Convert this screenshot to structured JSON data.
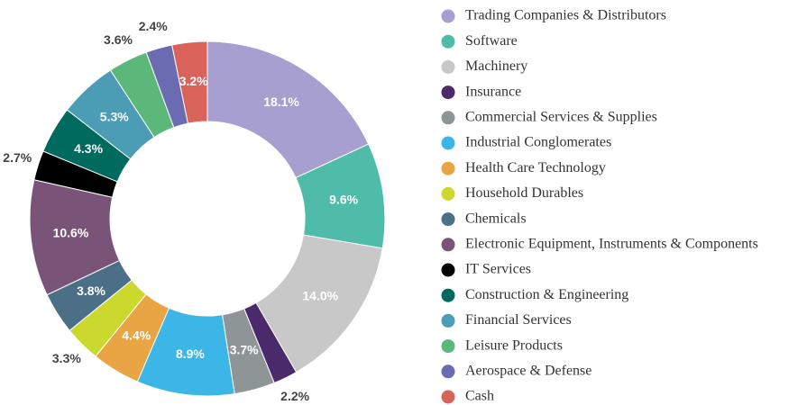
{
  "chart_data": {
    "type": "donut",
    "categories": [
      "Trading Companies & Distributors",
      "Software",
      "Machinery",
      "Insurance",
      "Commercial Services & Supplies",
      "Industrial Conglomerates",
      "Health Care Technology",
      "Household Durables",
      "Chemicals",
      "Electronic Equipment, Instruments & Components",
      "IT Services",
      "Construction & Engineering",
      "Financial Services",
      "Leisure Products",
      "Aerospace & Defense",
      "Cash"
    ],
    "values": [
      18.1,
      9.6,
      14.0,
      2.2,
      3.7,
      8.9,
      4.4,
      3.3,
      3.8,
      10.6,
      2.7,
      4.3,
      5.3,
      3.6,
      2.4,
      3.2
    ],
    "value_labels": [
      "18.1%",
      "9.6%",
      "14.0%",
      "2.2%",
      "3.7%",
      "8.9%",
      "4.4%",
      "3.3%",
      "3.8%",
      "10.6%",
      "2.7%",
      "4.3%",
      "5.3%",
      "3.6%",
      "2.4%",
      "3.2%"
    ],
    "label_position": [
      "inside",
      "inside",
      "inside",
      "outside",
      "inside",
      "inside",
      "inside",
      "outside",
      "inside",
      "inside",
      "outside",
      "inside",
      "inside",
      "outside",
      "outside",
      "inside"
    ],
    "colors": [
      "#a79fd0",
      "#4fbcaa",
      "#c8c8c8",
      "#4a2a6a",
      "#8e9597",
      "#3cb6e6",
      "#e9a444",
      "#cbd92e",
      "#4a6f87",
      "#7a5478",
      "#000000",
      "#006a5e",
      "#4a9db5",
      "#5cb87a",
      "#6a6bb0",
      "#d9625a"
    ],
    "legend": "right"
  }
}
